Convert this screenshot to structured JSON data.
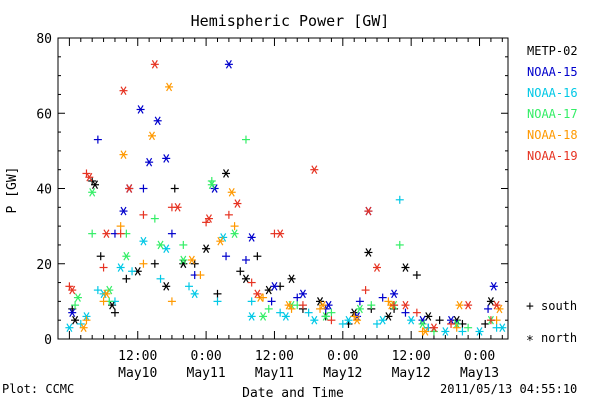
{
  "chart_data": {
    "type": "scatter",
    "title": "Hemispheric Power [GW]",
    "ylabel": "P [GW]",
    "xlabel": "Date and Time",
    "ylim": [
      0,
      80
    ],
    "yticks": [
      0,
      20,
      40,
      60,
      80
    ],
    "xlim": [
      "2011-05-09 22:00",
      "2011-05-13 05:00"
    ],
    "xticks": [
      {
        "time": "2011-05-10 12:00",
        "label": "12:00",
        "sublabel": "May10"
      },
      {
        "time": "2011-05-11 00:00",
        "label": "0:00",
        "sublabel": "May11"
      },
      {
        "time": "2011-05-11 12:00",
        "label": "12:00",
        "sublabel": "May11"
      },
      {
        "time": "2011-05-12 00:00",
        "label": "0:00",
        "sublabel": "May12"
      },
      {
        "time": "2011-05-12 12:00",
        "label": "12:00",
        "sublabel": "May12"
      },
      {
        "time": "2011-05-13 00:00",
        "label": "0:00",
        "sublabel": "May13"
      }
    ],
    "grid": false,
    "legend_position": "right",
    "series": [
      {
        "name": "METP-02",
        "color": "#000000",
        "south": [
          [
            "2011-05-10 00:30",
            8
          ],
          [
            "2011-05-10 04:00",
            42
          ],
          [
            "2011-05-10 05:30",
            22
          ],
          [
            "2011-05-10 08:00",
            7
          ],
          [
            "2011-05-10 10:00",
            16
          ],
          [
            "2011-05-10 15:00",
            20
          ],
          [
            "2011-05-10 18:30",
            40
          ],
          [
            "2011-05-10 22:00",
            20
          ],
          [
            "2011-05-11 02:00",
            12
          ],
          [
            "2011-05-11 06:00",
            18
          ],
          [
            "2011-05-11 09:00",
            22
          ],
          [
            "2011-05-11 13:00",
            14
          ],
          [
            "2011-05-11 17:00",
            8
          ],
          [
            "2011-05-11 21:00",
            6
          ],
          [
            "2011-05-12 01:00",
            4
          ],
          [
            "2011-05-12 05:00",
            8
          ],
          [
            "2011-05-12 09:00",
            8
          ],
          [
            "2011-05-12 13:00",
            17
          ],
          [
            "2011-05-12 17:00",
            5
          ],
          [
            "2011-05-12 21:00",
            4
          ],
          [
            "2011-05-13 01:00",
            4
          ]
        ],
        "north": [
          [
            "2011-05-10 01:00",
            5
          ],
          [
            "2011-05-10 04:30",
            41
          ],
          [
            "2011-05-10 07:30",
            9
          ],
          [
            "2011-05-10 12:00",
            18
          ],
          [
            "2011-05-10 17:00",
            14
          ],
          [
            "2011-05-10 20:00",
            20
          ],
          [
            "2011-05-11 00:00",
            24
          ],
          [
            "2011-05-11 03:30",
            44
          ],
          [
            "2011-05-11 07:00",
            16
          ],
          [
            "2011-05-11 11:00",
            13
          ],
          [
            "2011-05-11 15:00",
            16
          ],
          [
            "2011-05-11 20:00",
            10
          ],
          [
            "2011-05-12 02:00",
            7
          ],
          [
            "2011-05-12 04:30",
            23
          ],
          [
            "2011-05-12 08:00",
            6
          ],
          [
            "2011-05-12 11:00",
            19
          ],
          [
            "2011-05-12 15:00",
            6
          ],
          [
            "2011-05-12 20:00",
            5
          ],
          [
            "2011-05-13 02:00",
            10
          ]
        ]
      },
      {
        "name": "NOAA-15",
        "color": "#0000cc",
        "south": [
          [
            "2011-05-10 05:00",
            53
          ],
          [
            "2011-05-10 08:00",
            28
          ],
          [
            "2011-05-10 13:00",
            40
          ],
          [
            "2011-05-10 18:00",
            28
          ],
          [
            "2011-05-10 22:00",
            17
          ],
          [
            "2011-05-11 03:30",
            22
          ],
          [
            "2011-05-11 07:00",
            21
          ],
          [
            "2011-05-11 11:30",
            10
          ],
          [
            "2011-05-11 16:00",
            11
          ],
          [
            "2011-05-11 21:00",
            8
          ],
          [
            "2011-05-12 03:00",
            10
          ],
          [
            "2011-05-12 07:00",
            11
          ],
          [
            "2011-05-12 11:00",
            7
          ],
          [
            "2011-05-12 15:00",
            3
          ],
          [
            "2011-05-12 20:00",
            4
          ],
          [
            "2011-05-13 01:30",
            8
          ]
        ],
        "north": [
          [
            "2011-05-10 00:30",
            7
          ],
          [
            "2011-05-10 09:30",
            34
          ],
          [
            "2011-05-10 10:30",
            40
          ],
          [
            "2011-05-10 12:30",
            61
          ],
          [
            "2011-05-10 14:00",
            47
          ],
          [
            "2011-05-10 15:30",
            58
          ],
          [
            "2011-05-10 17:00",
            48
          ],
          [
            "2011-05-11 01:30",
            40
          ],
          [
            "2011-05-11 04:00",
            73
          ],
          [
            "2011-05-11 08:00",
            27
          ],
          [
            "2011-05-11 12:00",
            14
          ],
          [
            "2011-05-11 17:00",
            12
          ],
          [
            "2011-05-11 21:30",
            9
          ],
          [
            "2011-05-12 02:30",
            6
          ],
          [
            "2011-05-12 04:30",
            34
          ],
          [
            "2011-05-12 09:00",
            12
          ],
          [
            "2011-05-12 14:00",
            5
          ],
          [
            "2011-05-12 19:00",
            5
          ],
          [
            "2011-05-13 02:30",
            14
          ]
        ]
      },
      {
        "name": "NOAA-16",
        "color": "#00c8e6",
        "south": [
          [
            "2011-05-10 02:00",
            4
          ],
          [
            "2011-05-10 05:00",
            13
          ],
          [
            "2011-05-10 08:00",
            10
          ],
          [
            "2011-05-10 11:00",
            18
          ],
          [
            "2011-05-10 16:00",
            16
          ],
          [
            "2011-05-10 21:00",
            14
          ],
          [
            "2011-05-11 02:00",
            10
          ],
          [
            "2011-05-11 08:00",
            10
          ],
          [
            "2011-05-11 13:00",
            7
          ],
          [
            "2011-05-11 18:00",
            7
          ],
          [
            "2011-05-12 00:00",
            4
          ],
          [
            "2011-05-12 06:00",
            4
          ],
          [
            "2011-05-12 10:00",
            37
          ],
          [
            "2011-05-12 15:00",
            3
          ],
          [
            "2011-05-12 21:00",
            2
          ],
          [
            "2011-05-13 03:00",
            3
          ]
        ],
        "north": [
          [
            "2011-05-10 00:00",
            3
          ],
          [
            "2011-05-10 03:00",
            6
          ],
          [
            "2011-05-10 06:00",
            12
          ],
          [
            "2011-05-10 09:00",
            19
          ],
          [
            "2011-05-10 13:00",
            26
          ],
          [
            "2011-05-10 17:00",
            24
          ],
          [
            "2011-05-10 22:00",
            12
          ],
          [
            "2011-05-11 03:00",
            27
          ],
          [
            "2011-05-11 08:00",
            6
          ],
          [
            "2011-05-11 14:00",
            6
          ],
          [
            "2011-05-11 19:00",
            5
          ],
          [
            "2011-05-12 01:00",
            5
          ],
          [
            "2011-05-12 07:00",
            5
          ],
          [
            "2011-05-12 12:00",
            5
          ],
          [
            "2011-05-12 18:00",
            2
          ],
          [
            "2011-05-13 00:00",
            2
          ],
          [
            "2011-05-13 04:00",
            3
          ]
        ]
      },
      {
        "name": "NOAA-17",
        "color": "#33ee66",
        "south": [
          [
            "2011-05-10 01:00",
            9
          ],
          [
            "2011-05-10 04:00",
            28
          ],
          [
            "2011-05-10 07:00",
            10
          ],
          [
            "2011-05-10 10:00",
            28
          ],
          [
            "2011-05-10 15:00",
            32
          ],
          [
            "2011-05-10 20:00",
            25
          ],
          [
            "2011-05-11 01:00",
            42
          ],
          [
            "2011-05-11 07:00",
            53
          ],
          [
            "2011-05-11 11:00",
            8
          ],
          [
            "2011-05-11 16:00",
            9
          ],
          [
            "2011-05-11 22:00",
            7
          ],
          [
            "2011-05-12 05:00",
            9
          ],
          [
            "2011-05-12 10:00",
            25
          ],
          [
            "2011-05-12 16:00",
            2
          ],
          [
            "2011-05-12 22:00",
            3
          ]
        ],
        "north": [
          [
            "2011-05-10 01:30",
            11
          ],
          [
            "2011-05-10 04:00",
            39
          ],
          [
            "2011-05-10 07:00",
            13
          ],
          [
            "2011-05-10 10:00",
            22
          ],
          [
            "2011-05-10 16:00",
            25
          ],
          [
            "2011-05-10 20:00",
            21
          ],
          [
            "2011-05-11 01:00",
            41
          ],
          [
            "2011-05-11 05:00",
            28
          ],
          [
            "2011-05-11 10:00",
            6
          ],
          [
            "2011-05-11 15:00",
            9
          ],
          [
            "2011-05-11 21:00",
            6
          ],
          [
            "2011-05-12 03:00",
            8
          ],
          [
            "2011-05-12 09:00",
            9
          ],
          [
            "2011-05-12 14:00",
            4
          ],
          [
            "2011-05-12 20:00",
            4
          ],
          [
            "2011-05-13 02:00",
            5
          ]
        ]
      },
      {
        "name": "NOAA-18",
        "color": "#ff9900",
        "south": [
          [
            "2011-05-10 03:00",
            5
          ],
          [
            "2011-05-10 06:00",
            10
          ],
          [
            "2011-05-10 09:00",
            30
          ],
          [
            "2011-05-10 13:00",
            20
          ],
          [
            "2011-05-10 18:00",
            10
          ],
          [
            "2011-05-10 23:00",
            17
          ],
          [
            "2011-05-11 05:00",
            30
          ],
          [
            "2011-05-11 10:00",
            11
          ],
          [
            "2011-05-11 15:00",
            8
          ],
          [
            "2011-05-11 20:00",
            8
          ],
          [
            "2011-05-12 02:00",
            6
          ],
          [
            "2011-05-12 08:00",
            10
          ],
          [
            "2011-05-12 14:00",
            2
          ],
          [
            "2011-05-12 20:00",
            3
          ],
          [
            "2011-05-13 03:00",
            5
          ]
        ],
        "north": [
          [
            "2011-05-10 02:30",
            3
          ],
          [
            "2011-05-10 06:30",
            12
          ],
          [
            "2011-05-10 09:30",
            49
          ],
          [
            "2011-05-10 14:30",
            54
          ],
          [
            "2011-05-10 17:30",
            67
          ],
          [
            "2011-05-10 21:30",
            21
          ],
          [
            "2011-05-11 02:30",
            26
          ],
          [
            "2011-05-11 04:30",
            39
          ],
          [
            "2011-05-11 09:30",
            11
          ],
          [
            "2011-05-11 14:30",
            9
          ],
          [
            "2011-05-11 20:30",
            9
          ],
          [
            "2011-05-12 02:30",
            5
          ],
          [
            "2011-05-12 08:30",
            9
          ],
          [
            "2011-05-12 14:30",
            2
          ],
          [
            "2011-05-12 20:30",
            9
          ],
          [
            "2011-05-13 03:30",
            8
          ]
        ]
      },
      {
        "name": "NOAA-19",
        "color": "#e63322",
        "south": [
          [
            "2011-05-10 00:00",
            14
          ],
          [
            "2011-05-10 03:00",
            44
          ],
          [
            "2011-05-10 06:00",
            19
          ],
          [
            "2011-05-10 09:00",
            28
          ],
          [
            "2011-05-10 13:00",
            33
          ],
          [
            "2011-05-10 18:00",
            35
          ],
          [
            "2011-05-11 00:00",
            31
          ],
          [
            "2011-05-11 04:00",
            33
          ],
          [
            "2011-05-11 08:00",
            15
          ],
          [
            "2011-05-11 12:00",
            28
          ],
          [
            "2011-05-11 17:00",
            9
          ],
          [
            "2011-05-11 22:00",
            5
          ],
          [
            "2011-05-12 04:00",
            13
          ],
          [
            "2011-05-12 09:00",
            9
          ],
          [
            "2011-05-12 13:00",
            7
          ],
          [
            "2011-05-12 19:00",
            4
          ],
          [
            "2011-05-13 02:00",
            5
          ]
        ],
        "north": [
          [
            "2011-05-10 00:30",
            13
          ],
          [
            "2011-05-10 03:30",
            43
          ],
          [
            "2011-05-10 06:30",
            28
          ],
          [
            "2011-05-10 09:30",
            66
          ],
          [
            "2011-05-10 10:30",
            40
          ],
          [
            "2011-05-10 15:00",
            73
          ],
          [
            "2011-05-10 19:00",
            35
          ],
          [
            "2011-05-11 00:30",
            32
          ],
          [
            "2011-05-11 05:30",
            36
          ],
          [
            "2011-05-11 09:00",
            12
          ],
          [
            "2011-05-11 13:00",
            28
          ],
          [
            "2011-05-11 19:00",
            45
          ],
          [
            "2011-05-12 04:30",
            34
          ],
          [
            "2011-05-12 06:00",
            19
          ],
          [
            "2011-05-12 11:00",
            9
          ],
          [
            "2011-05-12 16:00",
            3
          ],
          [
            "2011-05-12 22:00",
            9
          ],
          [
            "2011-05-13 03:00",
            9
          ]
        ]
      }
    ]
  },
  "legend": {
    "south_label": "south",
    "north_label": "north",
    "south_glyph": "+",
    "north_glyph": "*"
  },
  "footer": {
    "left": "Plot: CCMC",
    "right": "2011/05/13 04:55:10"
  }
}
